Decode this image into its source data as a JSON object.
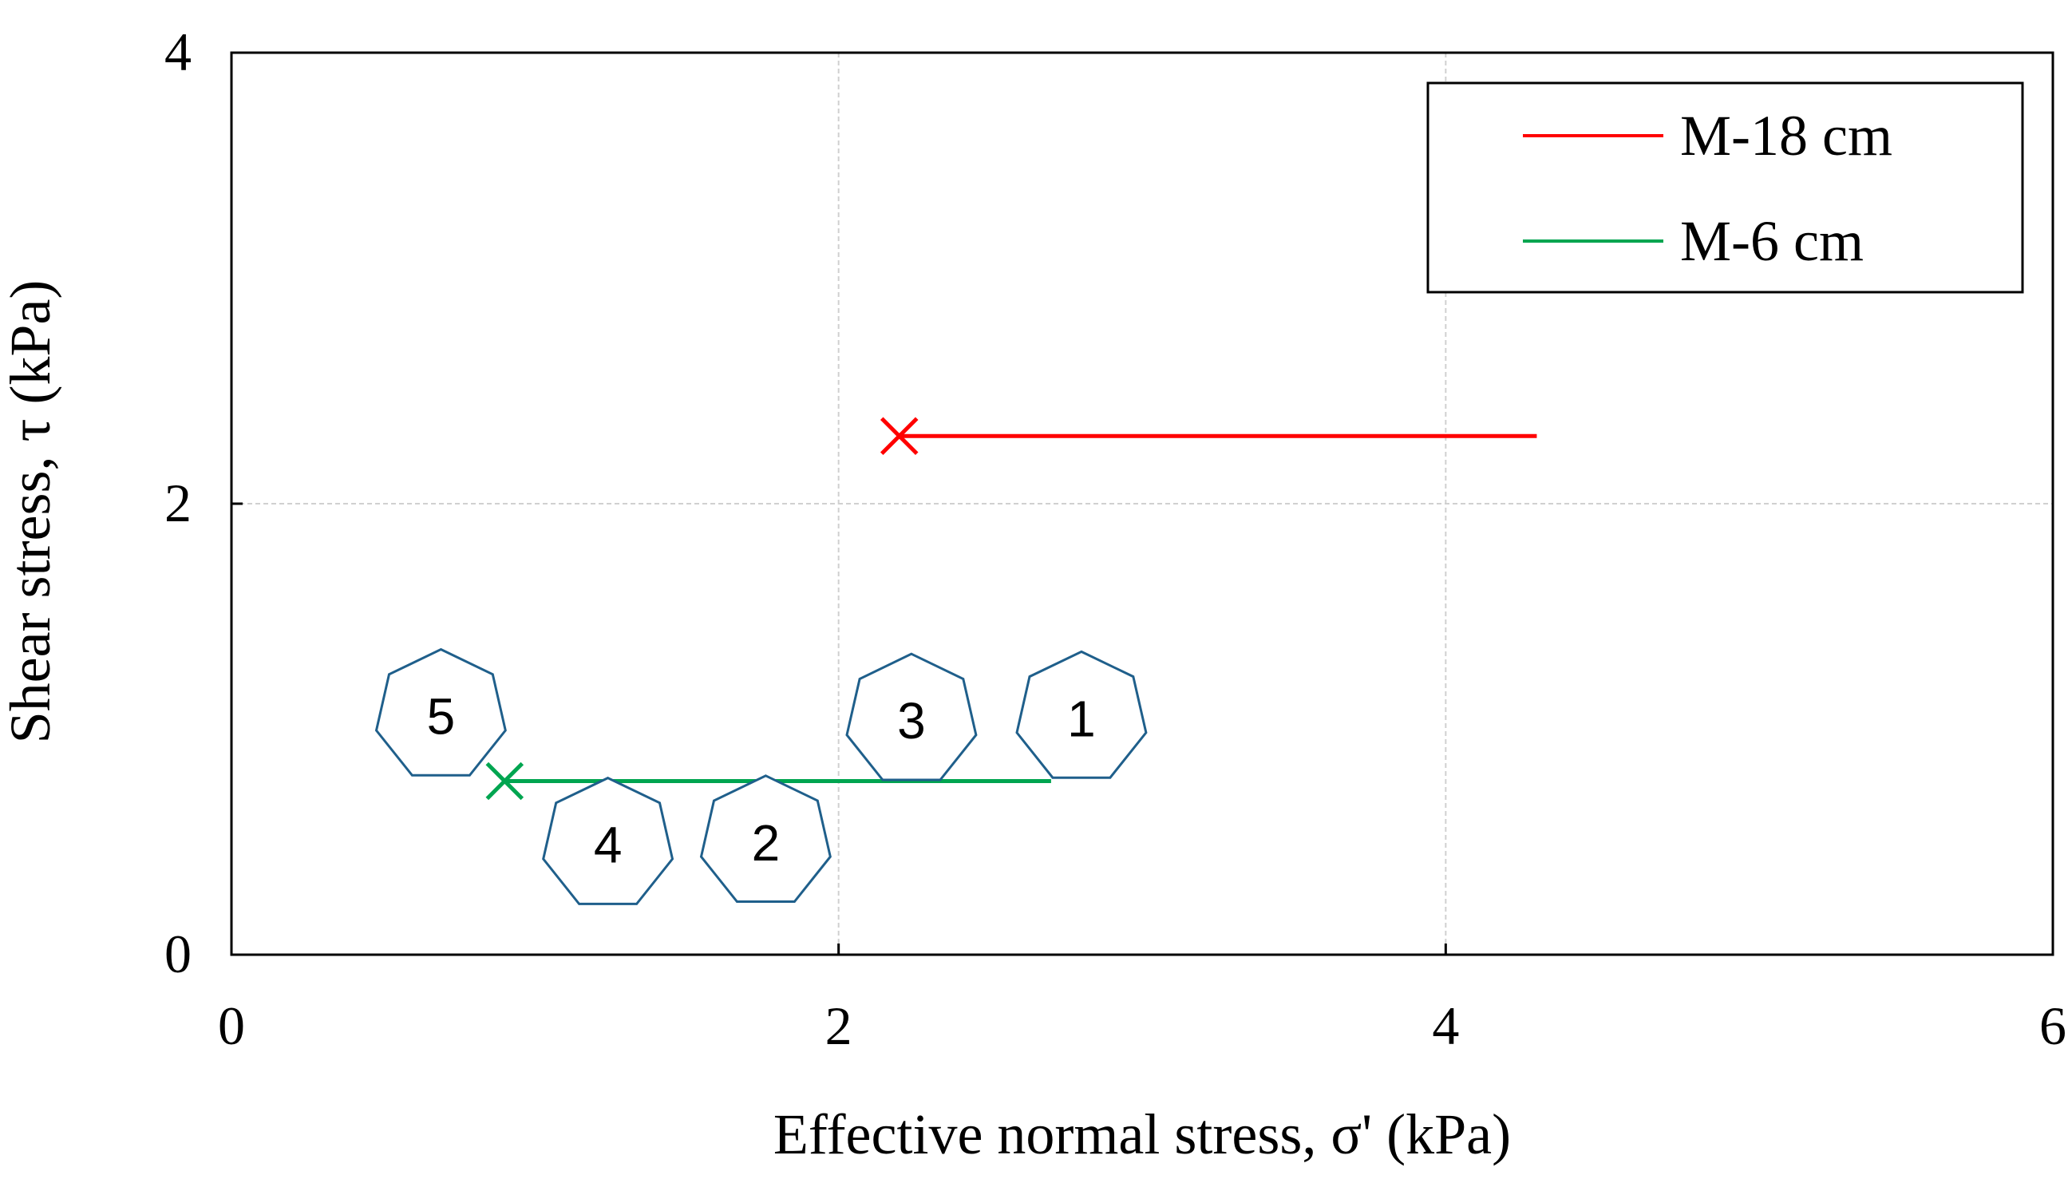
{
  "chart_data": {
    "type": "line",
    "title": "",
    "xlabel": "Effective normal stress, σ' (kPa)",
    "ylabel": "Shear stress, τ (kPa)",
    "xlim": [
      0,
      6
    ],
    "ylim": [
      0,
      4
    ],
    "xticks": [
      0,
      2,
      4,
      6
    ],
    "yticks": [
      0,
      2,
      4
    ],
    "xtick_labels": [
      "0",
      "2",
      "4",
      "6"
    ],
    "ytick_labels": [
      "0",
      "2",
      "4"
    ],
    "grid": true,
    "legend_position": "top-right",
    "series": [
      {
        "name": "M-18 cm",
        "color": "#ff0000",
        "x": [
          4.3,
          2.2
        ],
        "y": [
          2.3,
          2.3
        ],
        "end_marker": "x"
      },
      {
        "name": "M-6 cm",
        "color": "#00a550",
        "x": [
          2.7,
          0.9
        ],
        "y": [
          0.77,
          0.77
        ],
        "end_marker": "x"
      }
    ],
    "annotations": [
      {
        "label": "1",
        "x": 2.8,
        "y": 1.05,
        "shape": "heptagon",
        "color": "#1f5f8b"
      },
      {
        "label": "2",
        "x": 1.76,
        "y": 0.5,
        "shape": "heptagon",
        "color": "#1f5f8b"
      },
      {
        "label": "3",
        "x": 2.24,
        "y": 1.04,
        "shape": "heptagon",
        "color": "#1f5f8b"
      },
      {
        "label": "4",
        "x": 1.24,
        "y": 0.49,
        "shape": "heptagon",
        "color": "#1f5f8b"
      },
      {
        "label": "5",
        "x": 0.69,
        "y": 1.06,
        "shape": "heptagon",
        "color": "#1f5f8b"
      }
    ]
  }
}
